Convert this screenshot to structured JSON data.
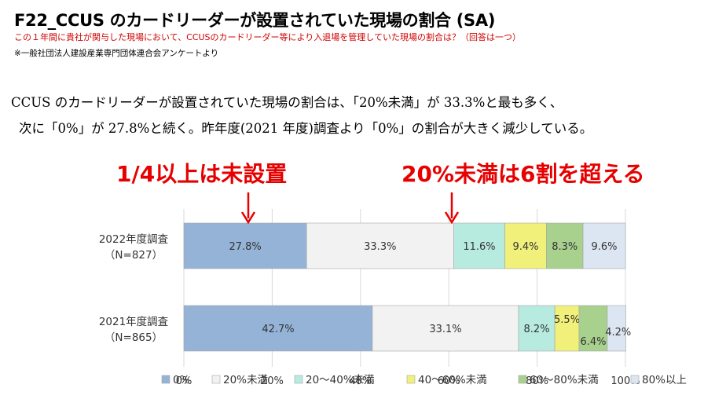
{
  "title": "F22_CCUS のカードリーダーが設置されていた現場の割合 (SA)",
  "subtitle": "この１年間に貴社が関与した現場において、CCUSのカードリーダー等により入退場を管理していた現場の割合は？（回答は一つ）",
  "source": "※一般社団法人建設産業専門団体連合会アンケートより",
  "summary": {
    "line1": "CCUS のカードリーダーが設置されていた現場の割合は、「20%未満」が 33.3%と最も多く、",
    "line2": "次に「0%」が 27.8%と続く。昨年度(2021 年度)調査より「0%」の割合が大きく減少している。"
  },
  "callouts": {
    "left": "1/4以上は未設置",
    "right": "20%未満は6割を超える"
  },
  "colors": {
    "s0": "#95b3d7",
    "s1": "#f2f2f2",
    "s2": "#b7ebe0",
    "s3": "#f0f07a",
    "s4": "#a9d18e",
    "s5": "#dce6f2",
    "arrow": "#e60000"
  },
  "chart_data": {
    "type": "bar",
    "orientation": "horizontal",
    "stacked": true,
    "categories": [
      {
        "line1": "2022年度調査",
        "line2": "（N=827）"
      },
      {
        "line1": "2021年度調査",
        "line2": "（N=865）"
      }
    ],
    "series": [
      {
        "name": "0%",
        "values": [
          27.8,
          42.7
        ],
        "labels": [
          "27.8%",
          "42.7%"
        ]
      },
      {
        "name": "20%未満",
        "values": [
          33.3,
          33.1
        ],
        "labels": [
          "33.3%",
          "33.1%"
        ]
      },
      {
        "name": "20～40%未満",
        "values": [
          11.6,
          8.2
        ],
        "labels": [
          "11.6%",
          "8.2%"
        ]
      },
      {
        "name": "40～60%未満",
        "values": [
          9.4,
          5.5
        ],
        "labels": [
          "9.4%",
          "5.5%"
        ]
      },
      {
        "name": "60～80%未満",
        "values": [
          8.3,
          6.4
        ],
        "labels": [
          "8.3%",
          "6.4%"
        ]
      },
      {
        "name": "80%以上",
        "values": [
          9.6,
          4.2
        ],
        "labels": [
          "9.6%",
          "4.2%"
        ]
      }
    ],
    "xlim": [
      0,
      100
    ],
    "ticks": [
      "0%",
      "20%",
      "40%",
      "60%",
      "80%",
      "100%"
    ],
    "legend_position": "bottom"
  }
}
